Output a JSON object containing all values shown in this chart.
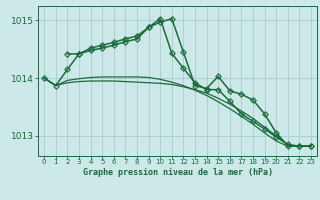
{
  "background_color": "#cce8e8",
  "grid_color": "#aacccc",
  "line_color": "#1a6b3c",
  "title": "Graphe pression niveau de la mer (hPa)",
  "ylim": [
    1012.65,
    1015.25
  ],
  "xlim": [
    -0.5,
    23.5
  ],
  "yticks": [
    1013,
    1014,
    1015
  ],
  "xticks": [
    0,
    1,
    2,
    3,
    4,
    5,
    6,
    7,
    8,
    9,
    10,
    11,
    12,
    13,
    14,
    15,
    16,
    17,
    18,
    19,
    20,
    21,
    22,
    23
  ],
  "series": [
    {
      "x": [
        0,
        1,
        2,
        3,
        4,
        5,
        6,
        7,
        8,
        9,
        10,
        11,
        12,
        13,
        14,
        15,
        16,
        17,
        18,
        19,
        20,
        21,
        22,
        23
      ],
      "y": [
        1014.0,
        1013.87,
        1014.15,
        1014.42,
        1014.48,
        1014.52,
        1014.57,
        1014.63,
        1014.68,
        1014.88,
        1014.97,
        1015.03,
        1014.45,
        1013.87,
        1013.82,
        1014.03,
        1013.78,
        1013.72,
        1013.62,
        1013.38,
        1013.05,
        1012.83,
        1012.82,
        1012.82
      ],
      "marker": "D",
      "markersize": 2.8,
      "linewidth": 1.1
    },
    {
      "x": [
        0,
        1,
        2,
        3,
        4,
        5,
        6,
        7,
        8,
        9,
        10,
        11,
        12,
        13,
        14,
        15,
        16,
        17,
        18,
        19,
        20,
        21,
        22,
        23
      ],
      "y": [
        1014.0,
        1013.87,
        1013.92,
        1013.94,
        1013.95,
        1013.95,
        1013.95,
        1013.94,
        1013.93,
        1013.92,
        1013.91,
        1013.89,
        1013.85,
        1013.8,
        1013.74,
        1013.65,
        1013.55,
        1013.43,
        1013.3,
        1013.15,
        1013.0,
        1012.84,
        1012.82,
        1012.82
      ],
      "marker": null,
      "markersize": 0,
      "linewidth": 0.9
    },
    {
      "x": [
        0,
        1,
        2,
        3,
        4,
        5,
        6,
        7,
        8,
        9,
        10,
        11,
        12,
        13,
        14,
        15,
        16,
        17,
        18,
        19,
        20,
        21,
        22,
        23
      ],
      "y": [
        1014.0,
        1013.87,
        1013.96,
        1013.99,
        1014.01,
        1014.02,
        1014.02,
        1014.02,
        1014.02,
        1014.01,
        1013.98,
        1013.93,
        1013.87,
        1013.79,
        1013.7,
        1013.59,
        1013.47,
        1013.34,
        1013.2,
        1013.05,
        1012.91,
        1012.82,
        1012.82,
        1012.82
      ],
      "marker": null,
      "markersize": 0,
      "linewidth": 0.9
    },
    {
      "x": [
        2,
        3,
        4,
        5,
        6,
        7,
        8,
        9,
        10,
        11,
        12,
        13,
        14,
        15,
        16,
        17,
        18,
        19,
        20,
        21,
        22,
        23
      ],
      "y": [
        1014.42,
        1014.42,
        1014.52,
        1014.57,
        1014.62,
        1014.68,
        1014.73,
        1014.88,
        1015.03,
        1014.43,
        1014.17,
        1013.92,
        1013.8,
        1013.8,
        1013.6,
        1013.38,
        1013.25,
        1013.12,
        1012.98,
        1012.85,
        1012.82,
        1012.82
      ],
      "marker": "D",
      "markersize": 2.8,
      "linewidth": 1.1
    }
  ]
}
